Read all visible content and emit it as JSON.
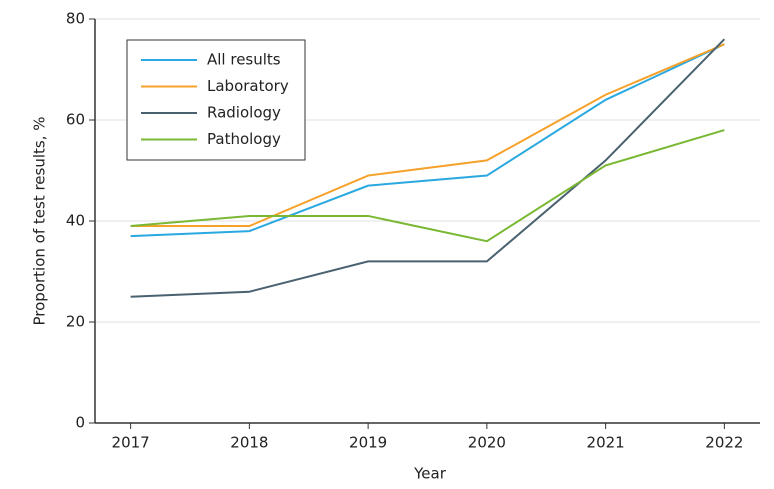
{
  "chart_data": {
    "type": "line",
    "x_label": "Year",
    "y_label": "Proportion of test results, %",
    "x": [
      2017,
      2018,
      2019,
      2020,
      2021,
      2022
    ],
    "xlim": [
      2016.7,
      2022.3
    ],
    "xticks": [
      2017,
      2018,
      2019,
      2020,
      2021,
      2022
    ],
    "ylim": [
      0,
      80
    ],
    "yticks": [
      0,
      20,
      40,
      60,
      80
    ],
    "grid": true,
    "legend": "upper left",
    "series": [
      {
        "name": "All results",
        "color": "#2aa8e0",
        "values": [
          37,
          38,
          47,
          49,
          64,
          75
        ]
      },
      {
        "name": "Laboratory",
        "color": "#f5a12a",
        "values": [
          39,
          39,
          49,
          52,
          65,
          75
        ]
      },
      {
        "name": "Radiology",
        "color": "#4a6170",
        "values": [
          25,
          26,
          32,
          32,
          52,
          76
        ]
      },
      {
        "name": "Pathology",
        "color": "#7ab834",
        "values": [
          39,
          41,
          41,
          36,
          51,
          58
        ]
      }
    ]
  }
}
